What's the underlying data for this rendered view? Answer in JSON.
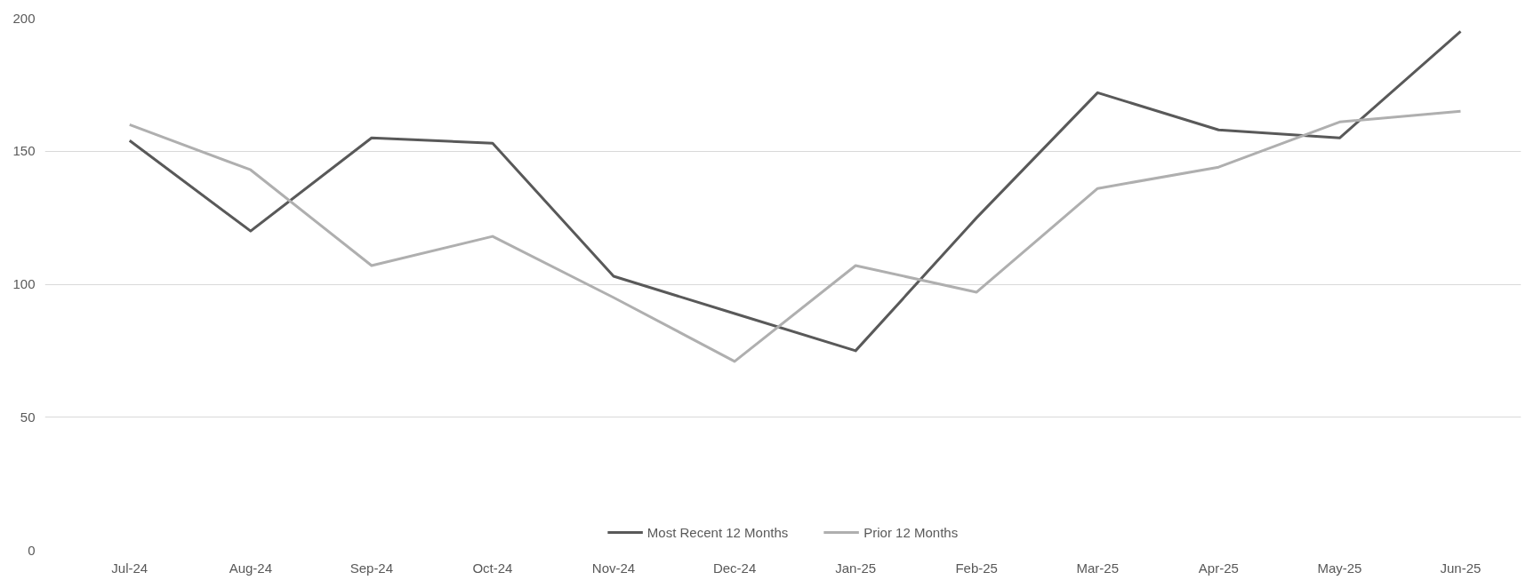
{
  "chart_data": {
    "type": "line",
    "categories": [
      "Jul-24",
      "Aug-24",
      "Sep-24",
      "Oct-24",
      "Nov-24",
      "Dec-24",
      "Jan-25",
      "Feb-25",
      "Mar-25",
      "Apr-25",
      "May-25",
      "Jun-25"
    ],
    "series": [
      {
        "name": "Most Recent 12 Months",
        "color": "#595959",
        "values": [
          154,
          120,
          155,
          153,
          103,
          89,
          75,
          125,
          172,
          158,
          155,
          195
        ]
      },
      {
        "name": "Prior 12 Months",
        "color": "#afafaf",
        "values": [
          160,
          143,
          107,
          118,
          95,
          71,
          107,
          97,
          136,
          144,
          161,
          165
        ]
      }
    ],
    "ylim": [
      0,
      200
    ],
    "yticks": [
      0,
      50,
      100,
      150,
      200
    ],
    "grid": "y",
    "legend": "bottom",
    "marker": "none",
    "line_style": "solid"
  }
}
